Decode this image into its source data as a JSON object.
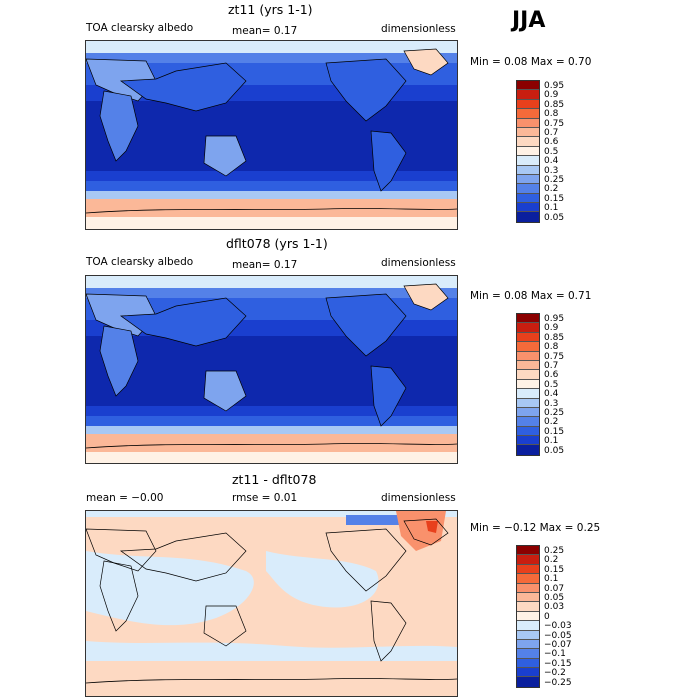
{
  "season": "JJA",
  "panels": [
    {
      "title": "zt11 (yrs 1-1)",
      "left_text": "TOA clearsky albedo",
      "mid_text": "mean=   0.17",
      "right_text": "dimensionless",
      "min_max": "Min =    0.08  Max =    0.70",
      "levels": [
        "0.95",
        "0.9",
        "0.85",
        "0.8",
        "0.75",
        "0.7",
        "0.6",
        "0.5",
        "0.4",
        "0.3",
        "0.25",
        "0.2",
        "0.15",
        "0.1",
        "0.05"
      ],
      "colors": [
        "#8b0000",
        "#c81e10",
        "#e8401c",
        "#f56a3a",
        "#f9916c",
        "#fbb898",
        "#fdd9c2",
        "#fff2e6",
        "#d9ecfb",
        "#a8c8f4",
        "#7ea4ee",
        "#5481e8",
        "#2f5fe0",
        "#1a3fcf",
        "#0a1f9e"
      ]
    },
    {
      "title": "dflt078 (yrs 1-1)",
      "left_text": "TOA clearsky albedo",
      "mid_text": "mean=   0.17",
      "right_text": "dimensionless",
      "min_max": "Min =    0.08  Max =    0.71",
      "levels": [
        "0.95",
        "0.9",
        "0.85",
        "0.8",
        "0.75",
        "0.7",
        "0.6",
        "0.5",
        "0.4",
        "0.3",
        "0.25",
        "0.2",
        "0.15",
        "0.1",
        "0.05"
      ],
      "colors": [
        "#8b0000",
        "#c81e10",
        "#e8401c",
        "#f56a3a",
        "#f9916c",
        "#fbb898",
        "#fdd9c2",
        "#fff2e6",
        "#d9ecfb",
        "#a8c8f4",
        "#7ea4ee",
        "#5481e8",
        "#2f5fe0",
        "#1a3fcf",
        "#0a1f9e"
      ]
    },
    {
      "title": "zt11 - dflt078",
      "left_text": "mean =   −0.00",
      "mid_text": "rmse =    0.01",
      "right_text": "dimensionless",
      "min_max": "Min =   −0.12  Max =    0.25",
      "levels": [
        "0.25",
        "0.2",
        "0.15",
        "0.1",
        "0.07",
        "0.05",
        "0.03",
        "0",
        "−0.03",
        "−0.05",
        "−0.07",
        "−0.1",
        "−0.15",
        "−0.2",
        "−0.25"
      ],
      "colors": [
        "#8b0000",
        "#c81e10",
        "#e8401c",
        "#f56a3a",
        "#f9916c",
        "#fbb898",
        "#fdd9c2",
        "#fff2e6",
        "#d9ecfb",
        "#a8c8f4",
        "#7ea4ee",
        "#5481e8",
        "#2f5fe0",
        "#1a3fcf",
        "#0a1f9e"
      ]
    }
  ]
}
